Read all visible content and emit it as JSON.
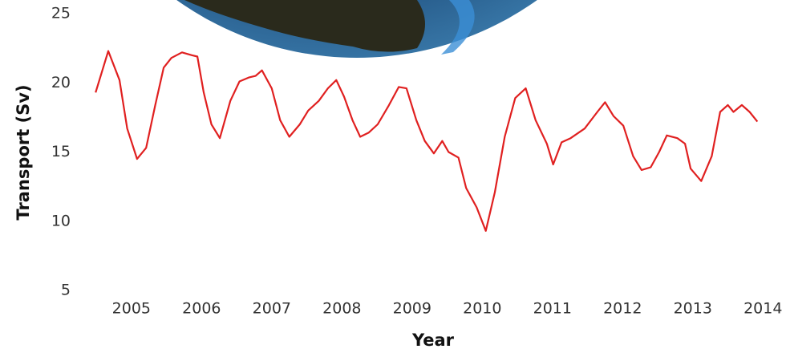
{
  "chart_data": {
    "type": "line",
    "xlabel": "Year",
    "ylabel": "Transport (Sv)",
    "x": [
      2004.49,
      2004.67,
      2004.83,
      2004.94,
      2005.08,
      2005.21,
      2005.34,
      2005.46,
      2005.57,
      2005.72,
      2005.86,
      2005.94,
      2006.03,
      2006.14,
      2006.26,
      2006.41,
      2006.54,
      2006.68,
      2006.77,
      2006.86,
      2007.0,
      2007.12,
      2007.25,
      2007.4,
      2007.52,
      2007.67,
      2007.8,
      2007.92,
      2008.03,
      2008.15,
      2008.26,
      2008.38,
      2008.51,
      2008.66,
      2008.81,
      2008.92,
      2009.06,
      2009.18,
      2009.31,
      2009.43,
      2009.52,
      2009.66,
      2009.77,
      2009.92,
      2010.05,
      2010.18,
      2010.32,
      2010.47,
      2010.62,
      2010.76,
      2010.92,
      2011.01,
      2011.13,
      2011.26,
      2011.46,
      2011.64,
      2011.75,
      2011.87,
      2012.01,
      2012.15,
      2012.27,
      2012.4,
      2012.52,
      2012.63,
      2012.78,
      2012.89,
      2012.97,
      2013.12,
      2013.27,
      2013.39,
      2013.5,
      2013.58,
      2013.7,
      2013.81,
      2013.92
    ],
    "series": [
      {
        "color": "#e02020",
        "values": [
          19.3,
          22.3,
          20.2,
          16.7,
          14.5,
          15.3,
          18.4,
          21.1,
          21.8,
          22.2,
          22.0,
          21.9,
          19.3,
          17.0,
          16.0,
          18.7,
          20.1,
          20.4,
          20.5,
          20.9,
          19.6,
          17.3,
          16.1,
          17.0,
          18.0,
          18.7,
          19.6,
          20.2,
          19.0,
          17.3,
          16.1,
          16.4,
          17.0,
          18.3,
          19.7,
          19.6,
          17.3,
          15.8,
          14.9,
          15.8,
          15.0,
          14.6,
          12.4,
          11.0,
          9.3,
          12.1,
          16.1,
          18.9,
          19.6,
          17.3,
          15.6,
          14.1,
          15.7,
          16.0,
          16.7,
          17.9,
          18.6,
          17.6,
          16.9,
          14.7,
          13.7,
          13.9,
          15.0,
          16.2,
          16.0,
          15.6,
          13.8,
          12.9,
          14.7,
          17.9,
          18.4,
          17.9,
          18.4,
          17.9,
          17.2
        ]
      }
    ],
    "xlim": [
      2004.27,
      2014.1
    ],
    "xticks": [
      2005,
      2006,
      2007,
      2008,
      2009,
      2010,
      2011,
      2012,
      2013,
      2014
    ],
    "ylim": [
      5,
      25
    ],
    "yticks": [
      5,
      10,
      15,
      20,
      25
    ],
    "grid": false
  }
}
